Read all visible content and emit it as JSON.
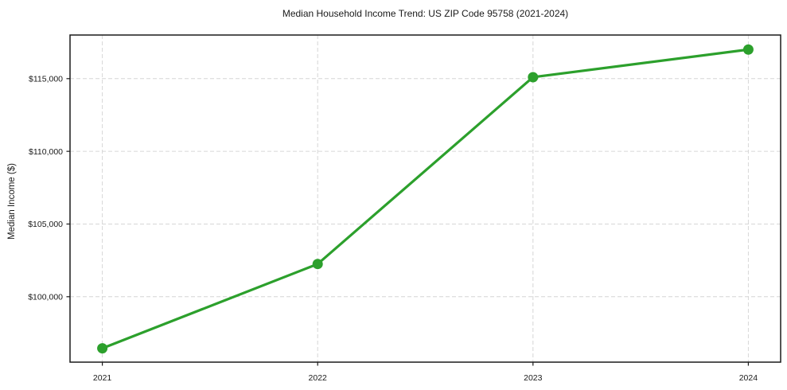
{
  "chart_data": {
    "type": "line",
    "title": "Median Household Income Trend: US ZIP Code 95758 (2021-2024)",
    "xlabel": "",
    "ylabel": "Median Income ($)",
    "x": [
      2021,
      2022,
      2023,
      2024
    ],
    "x_tick_labels": [
      "2021",
      "2022",
      "2023",
      "2024"
    ],
    "y_ticks": [
      100000,
      105000,
      110000,
      115000
    ],
    "y_tick_labels": [
      "$100,000",
      "$105,000",
      "$110,000",
      "$115,000"
    ],
    "series": [
      {
        "name": "Median Household Income",
        "values": [
          96450,
          102250,
          115100,
          117000
        ]
      }
    ],
    "xlim": [
      2020.85,
      2024.15
    ],
    "ylim": [
      95500,
      118000
    ],
    "grid": true,
    "grid_style": "dashed",
    "legend": "none",
    "marker": "circle"
  },
  "colors": {
    "line": "#2ca02c",
    "marker": "#2ca02c",
    "grid": "#d6d6d6",
    "axis": "#1a1a1a",
    "background": "#ffffff",
    "text": "#1a1a1a"
  }
}
